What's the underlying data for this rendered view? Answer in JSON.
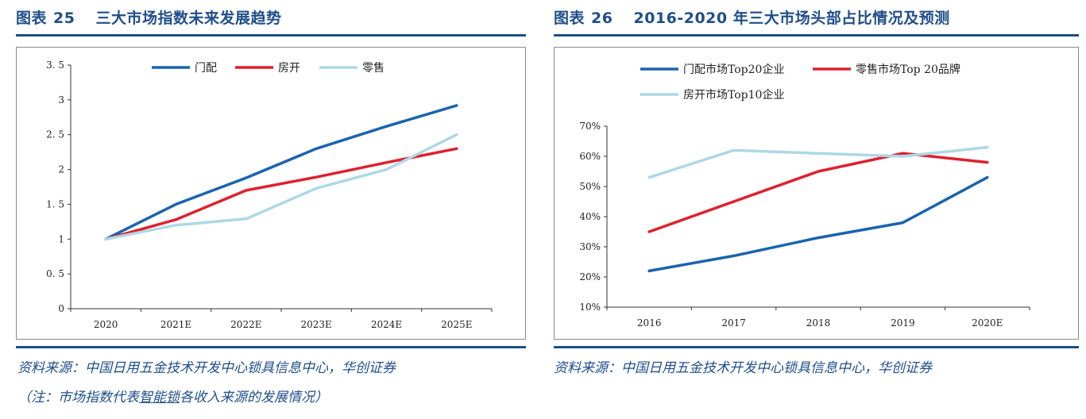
{
  "figures": [
    {
      "id": "fig25",
      "label": "图表",
      "number": "25",
      "title": "三大市场指数未来发展趋势",
      "source": "资料来源：中国日用五金技术开发中心锁具信息中心，华创证券",
      "note": {
        "before": "（注：市场指数代表",
        "underlined": "智能锁",
        "after": "各收入来源的发展情况）"
      }
    },
    {
      "id": "fig26",
      "label": "图表",
      "number": "26",
      "title": "2016-2020 年三大市场头部占比情况及预测",
      "source": "资料来源：中国日用五金技术开发中心锁具信息中心，华创证券"
    }
  ],
  "chart_data": [
    {
      "type": "line",
      "categories": [
        "2020",
        "2021E",
        "2022E",
        "2023E",
        "2024E",
        "2025E"
      ],
      "series": [
        {
          "name": "门配",
          "color": "#1a64b0",
          "values": [
            1.0,
            1.5,
            1.88,
            2.3,
            2.62,
            2.92
          ]
        },
        {
          "name": "房开",
          "color": "#e0202e",
          "values": [
            1.0,
            1.28,
            1.7,
            1.89,
            2.1,
            2.3
          ]
        },
        {
          "name": "零售",
          "color": "#add8e6",
          "values": [
            1.0,
            1.2,
            1.29,
            1.73,
            2.0,
            2.5
          ]
        }
      ],
      "y_ticks": [
        "0",
        "0. 5",
        "1",
        "1. 5",
        "2",
        "2. 5",
        "3",
        "3. 5"
      ],
      "ylim": [
        0,
        3.5
      ],
      "grid": false,
      "legend": "top"
    },
    {
      "type": "line",
      "categories": [
        "2016",
        "2017",
        "2018",
        "2019",
        "2020E"
      ],
      "series": [
        {
          "name": "门配市场Top20企业",
          "color": "#1a64b0",
          "values": [
            22,
            27,
            33,
            38,
            53
          ]
        },
        {
          "name": "零售市场Top 20品牌",
          "color": "#e0202e",
          "values": [
            35,
            45,
            55,
            61,
            58
          ]
        },
        {
          "name": "房开市场Top10企业",
          "color": "#add8e6",
          "values": [
            53,
            62,
            61,
            60,
            63
          ]
        }
      ],
      "y_ticks": [
        "10%",
        "20%",
        "30%",
        "40%",
        "50%",
        "60%",
        "70%"
      ],
      "ylim": [
        10,
        70
      ],
      "grid": false,
      "legend": "top-left"
    }
  ]
}
